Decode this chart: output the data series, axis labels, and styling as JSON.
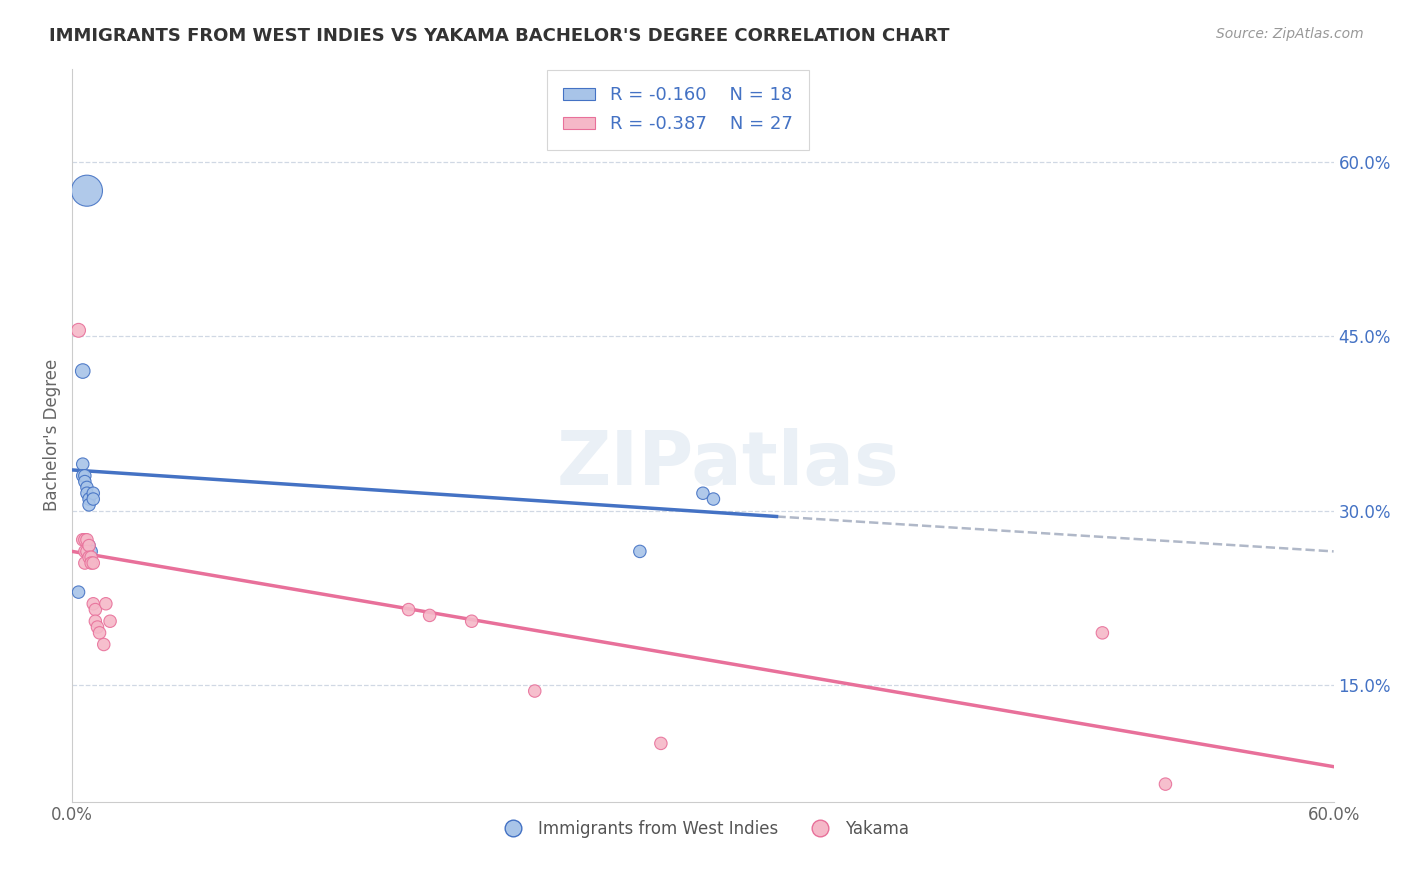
{
  "title": "IMMIGRANTS FROM WEST INDIES VS YAKAMA BACHELOR'S DEGREE CORRELATION CHART",
  "source": "Source: ZipAtlas.com",
  "xlabel_bottom": "Immigrants from West Indies",
  "xlabel_bottom2": "Yakama",
  "ylabel": "Bachelor's Degree",
  "xlim": [
    0.0,
    0.6
  ],
  "ylim": [
    0.05,
    0.68
  ],
  "right_yticks": [
    0.15,
    0.3,
    0.45,
    0.6
  ],
  "right_yticklabels": [
    "15.0%",
    "30.0%",
    "45.0%",
    "60.0%"
  ],
  "blue_R": -0.16,
  "blue_N": 18,
  "pink_R": -0.387,
  "pink_N": 27,
  "blue_color": "#a8c4e8",
  "pink_color": "#f5b8c8",
  "blue_line_color": "#4472c4",
  "pink_line_color": "#e8709a",
  "dashed_line_color": "#b0b8c8",
  "legend_text_color": "#4472c4",
  "title_color": "#333333",
  "grid_color": "#d0d8e4",
  "background_color": "#ffffff",
  "blue_scatter_x": [
    0.007,
    0.005,
    0.005,
    0.005,
    0.006,
    0.006,
    0.007,
    0.007,
    0.008,
    0.008,
    0.008,
    0.009,
    0.01,
    0.01,
    0.3,
    0.305,
    0.27,
    0.003
  ],
  "blue_scatter_y": [
    0.575,
    0.42,
    0.34,
    0.33,
    0.33,
    0.325,
    0.32,
    0.315,
    0.31,
    0.305,
    0.27,
    0.265,
    0.315,
    0.31,
    0.315,
    0.31,
    0.265,
    0.23
  ],
  "blue_scatter_size": [
    500,
    110,
    80,
    80,
    80,
    80,
    80,
    80,
    80,
    80,
    80,
    80,
    80,
    80,
    80,
    80,
    80,
    80
  ],
  "pink_scatter_x": [
    0.003,
    0.005,
    0.006,
    0.006,
    0.006,
    0.007,
    0.007,
    0.008,
    0.008,
    0.009,
    0.009,
    0.01,
    0.01,
    0.011,
    0.011,
    0.012,
    0.013,
    0.015,
    0.016,
    0.018,
    0.16,
    0.17,
    0.19,
    0.22,
    0.28,
    0.49,
    0.52
  ],
  "pink_scatter_y": [
    0.455,
    0.275,
    0.275,
    0.265,
    0.255,
    0.275,
    0.265,
    0.27,
    0.26,
    0.26,
    0.255,
    0.255,
    0.22,
    0.215,
    0.205,
    0.2,
    0.195,
    0.185,
    0.22,
    0.205,
    0.215,
    0.21,
    0.205,
    0.145,
    0.1,
    0.195,
    0.065
  ],
  "pink_scatter_size": [
    100,
    80,
    80,
    80,
    80,
    80,
    80,
    80,
    80,
    80,
    80,
    80,
    80,
    80,
    80,
    80,
    80,
    80,
    80,
    80,
    80,
    80,
    80,
    80,
    80,
    80,
    80
  ],
  "blue_trend_x": [
    0.0,
    0.335
  ],
  "blue_trend_y": [
    0.335,
    0.295
  ],
  "pink_trend_x": [
    0.0,
    0.6
  ],
  "pink_trend_y": [
    0.265,
    0.08
  ],
  "dashed_trend_x": [
    0.335,
    0.6
  ],
  "dashed_trend_y": [
    0.295,
    0.265
  ],
  "watermark": "ZIPatlas"
}
